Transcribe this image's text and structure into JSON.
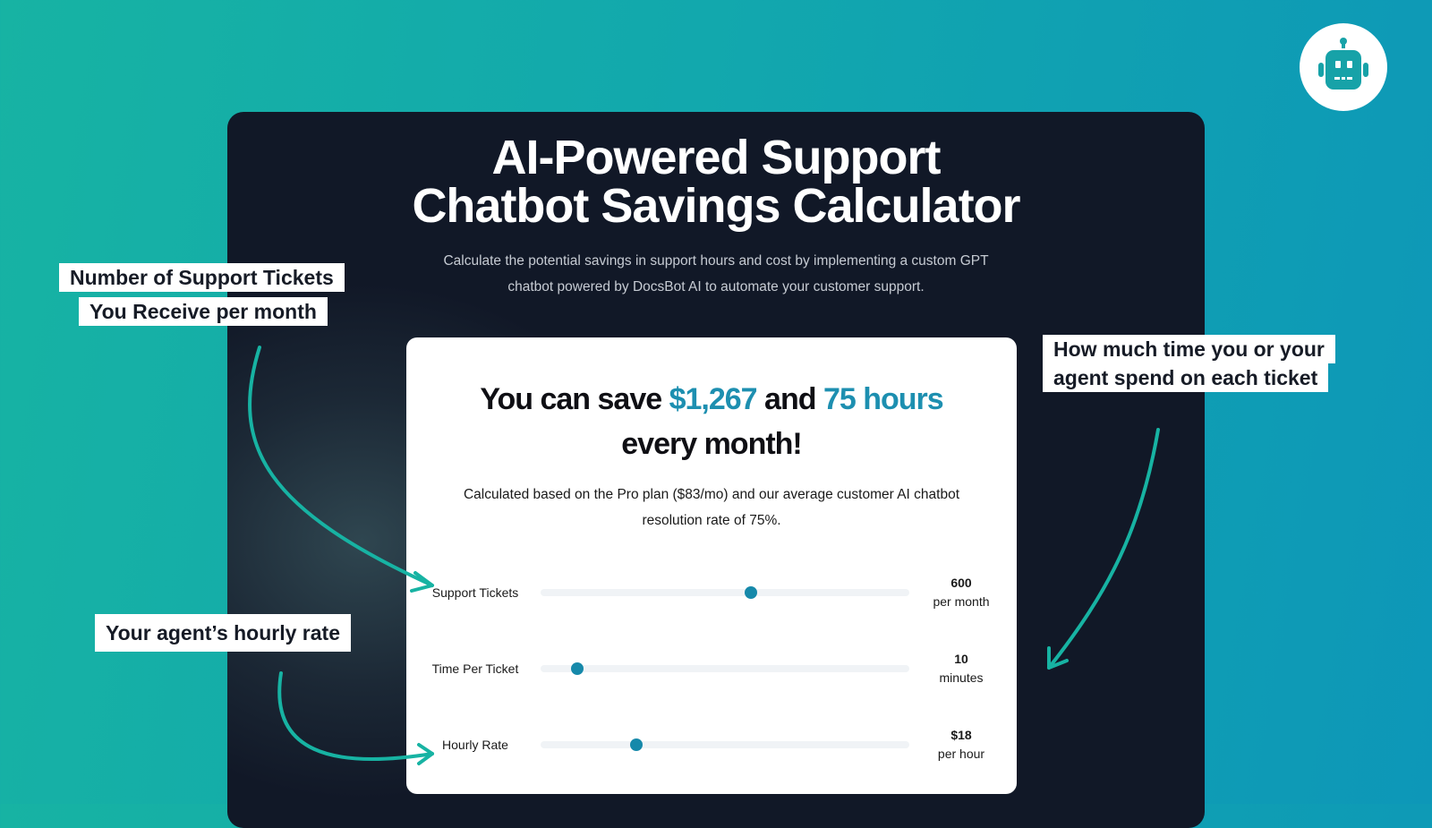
{
  "panel": {
    "title_line1": "AI-Powered Support",
    "title_line2": "Chatbot Savings Calculator",
    "subtitle_line1": "Calculate the potential savings in support hours and cost by implementing a custom GPT",
    "subtitle_line2": "chatbot powered by DocsBot AI to automate your customer support."
  },
  "card": {
    "headline_prefix": "You can save ",
    "savings_amount": "$1,267",
    "headline_and": " and ",
    "savings_hours": "75 hours",
    "headline_suffix": "every month!",
    "description_line1": "Calculated based on the Pro plan ($83/mo) and our average customer AI chatbot",
    "description_line2": "resolution rate of 75%.",
    "sliders": [
      {
        "label": "Support Tickets",
        "value": "600",
        "unit": "per month",
        "fraction": 0.57
      },
      {
        "label": "Time Per Ticket",
        "value": "10",
        "unit": "minutes",
        "fraction": 0.1
      },
      {
        "label": "Hourly Rate",
        "value": "$18",
        "unit": "per hour",
        "fraction": 0.26
      }
    ]
  },
  "callouts": {
    "tickets_line1": "Number of Support Tickets",
    "tickets_line2": "You Receive per month",
    "time_line1": "How much time you or your",
    "time_line2": "agent spend on each ticket",
    "rate": "Your agent’s hourly rate"
  },
  "icons": {
    "logo": "robot-icon"
  },
  "colors": {
    "background_start": "#17b3a3",
    "background_end": "#0d97b8",
    "panel": "#111827",
    "accent": "#1d8fb0",
    "slider_thumb": "#1689aa",
    "arrow": "#17b3a3"
  }
}
